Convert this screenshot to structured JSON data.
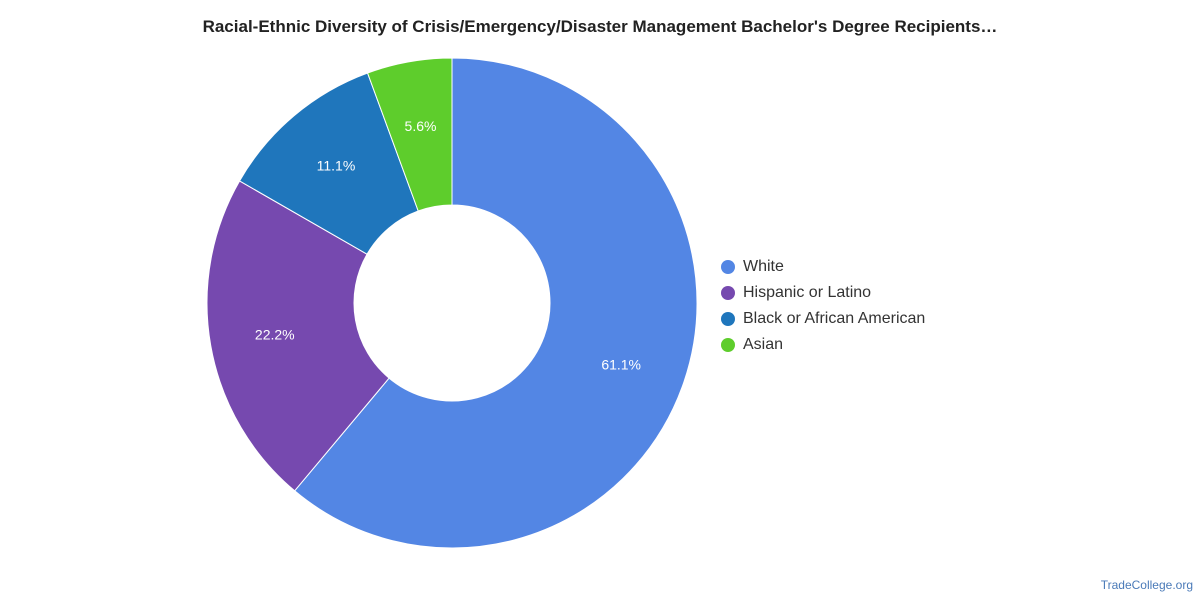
{
  "chart_data": {
    "type": "pie",
    "title": "Racial-Ethnic Diversity of Crisis/Emergency/Disaster Management Bachelor's Degree Recipients…",
    "categories": [
      "White",
      "Hispanic or Latino",
      "Black or African American",
      "Asian"
    ],
    "values": [
      61.1,
      22.2,
      11.1,
      5.6
    ],
    "value_labels": [
      "61.1%",
      "22.2%",
      "11.1%",
      "5.6%"
    ],
    "colors": [
      "#5386e4",
      "#7649af",
      "#1f76bc",
      "#5ecd2c"
    ],
    "donut": true,
    "legend_position": "right"
  },
  "source_label": "TradeCollege.org"
}
